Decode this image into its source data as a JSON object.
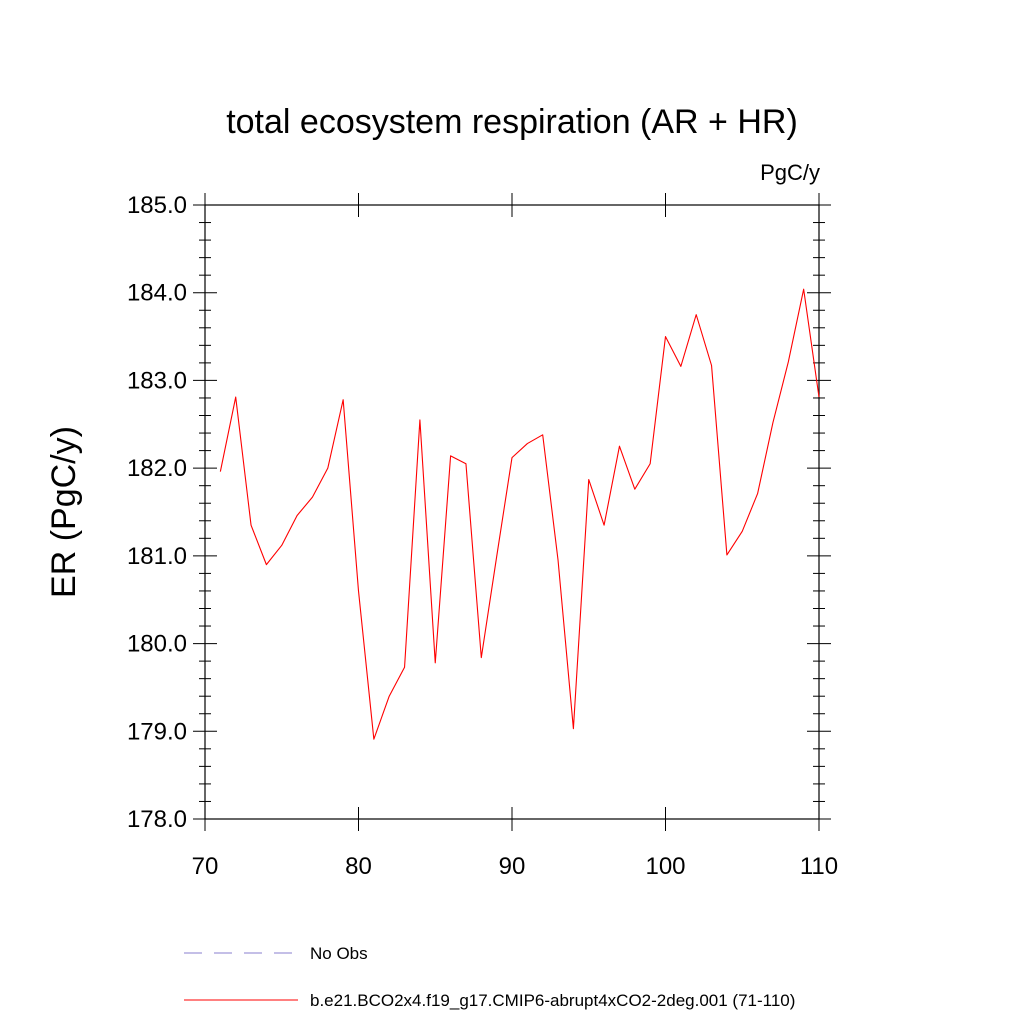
{
  "chart_data": {
    "type": "line",
    "title": "total ecosystem respiration (AR + HR)",
    "units_label": "PgC/y",
    "ylabel": "ER  (PgC/y)",
    "xlabel": "",
    "xlim": [
      70,
      110
    ],
    "ylim": [
      178.0,
      185.0
    ],
    "x_ticks": [
      70,
      80,
      90,
      100,
      110
    ],
    "x_tick_labels": [
      "70",
      "80",
      "90",
      "100",
      "110"
    ],
    "y_ticks": [
      178.0,
      179.0,
      180.0,
      181.0,
      182.0,
      183.0,
      184.0,
      185.0
    ],
    "y_tick_labels": [
      "178.0",
      "179.0",
      "180.0",
      "181.0",
      "182.0",
      "183.0",
      "184.0",
      "185.0"
    ],
    "grid": false,
    "legend_position": "bottom",
    "series": [
      {
        "name": "b.e21.BCO2x4.f19_g17.CMIP6-abrupt4xCO2-2deg.001 (71-110)",
        "color": "#ff0000",
        "style": "solid",
        "x": [
          71,
          72,
          73,
          74,
          75,
          76,
          77,
          78,
          79,
          80,
          81,
          82,
          83,
          84,
          85,
          86,
          87,
          88,
          89,
          90,
          91,
          92,
          93,
          94,
          95,
          96,
          97,
          98,
          99,
          100,
          101,
          102,
          103,
          104,
          105,
          106,
          107,
          108,
          109,
          110
        ],
        "y": [
          181.96,
          182.81,
          181.35,
          180.9,
          181.12,
          181.46,
          181.67,
          182.0,
          182.78,
          180.6,
          178.91,
          179.4,
          179.73,
          182.55,
          179.78,
          182.14,
          182.05,
          179.84,
          180.99,
          182.12,
          182.28,
          182.38,
          180.95,
          179.03,
          181.87,
          181.35,
          182.25,
          181.76,
          182.05,
          183.5,
          183.16,
          183.75,
          183.17,
          181.01,
          181.28,
          181.71,
          182.52,
          183.21,
          184.04,
          182.81
        ]
      }
    ],
    "legend": [
      {
        "label": "No Obs",
        "color": "#8a7fcf",
        "style": "dashed"
      },
      {
        "label": "b.e21.BCO2x4.f19_g17.CMIP6-abrupt4xCO2-2deg.001 (71-110)",
        "color": "#ff0000",
        "style": "solid"
      }
    ]
  }
}
